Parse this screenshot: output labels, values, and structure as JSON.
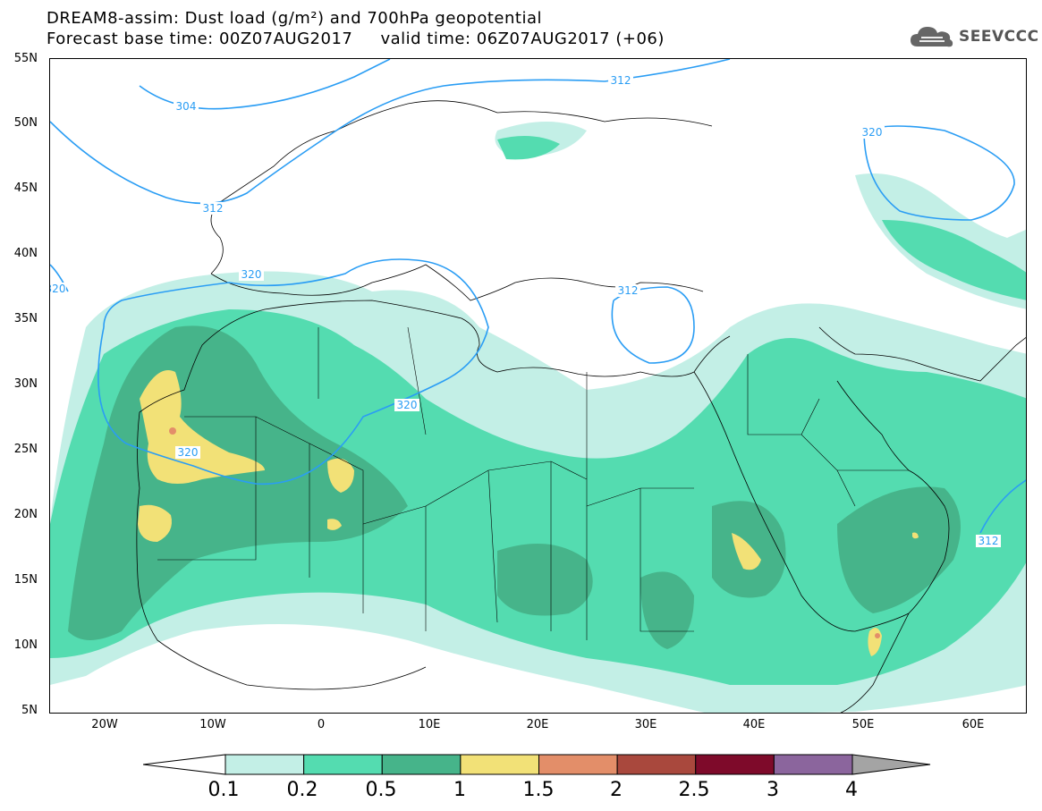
{
  "header": {
    "title_line1": "DREAM8-assim: Dust load (g/m²) and 700hPa geopotential",
    "title_line2": "Forecast base time: 00Z07AUG2017     valid time: 06Z07AUG2017 (+06)"
  },
  "logo": {
    "text": "SEEVCCC",
    "icon": "cloud-icon"
  },
  "axes": {
    "lat_labels": [
      "55N",
      "50N",
      "45N",
      "40N",
      "35N",
      "30N",
      "25N",
      "20N",
      "15N",
      "10N",
      "5N"
    ],
    "lon_labels": [
      "20W",
      "10W",
      "0",
      "10E",
      "20E",
      "30E",
      "40E",
      "50E",
      "60E"
    ]
  },
  "contours": {
    "labels": [
      "304",
      "312",
      "312",
      "312",
      "312",
      "320",
      "320",
      "320",
      "320",
      "320"
    ]
  },
  "colorbar": {
    "labels": [
      "0.1",
      "0.2",
      "0.5",
      "1",
      "1.5",
      "2",
      "2.5",
      "3",
      "4"
    ],
    "colors": [
      "#c3efe6",
      "#54dcb0",
      "#46b48a",
      "#f2e177",
      "#e38e69",
      "#a9483d",
      "#7e0a2a",
      "#8b659d",
      "#a4a4a4"
    ]
  },
  "colors": {
    "contour": "#2a9df4",
    "frame": "#000000",
    "land_border": "#000000"
  }
}
